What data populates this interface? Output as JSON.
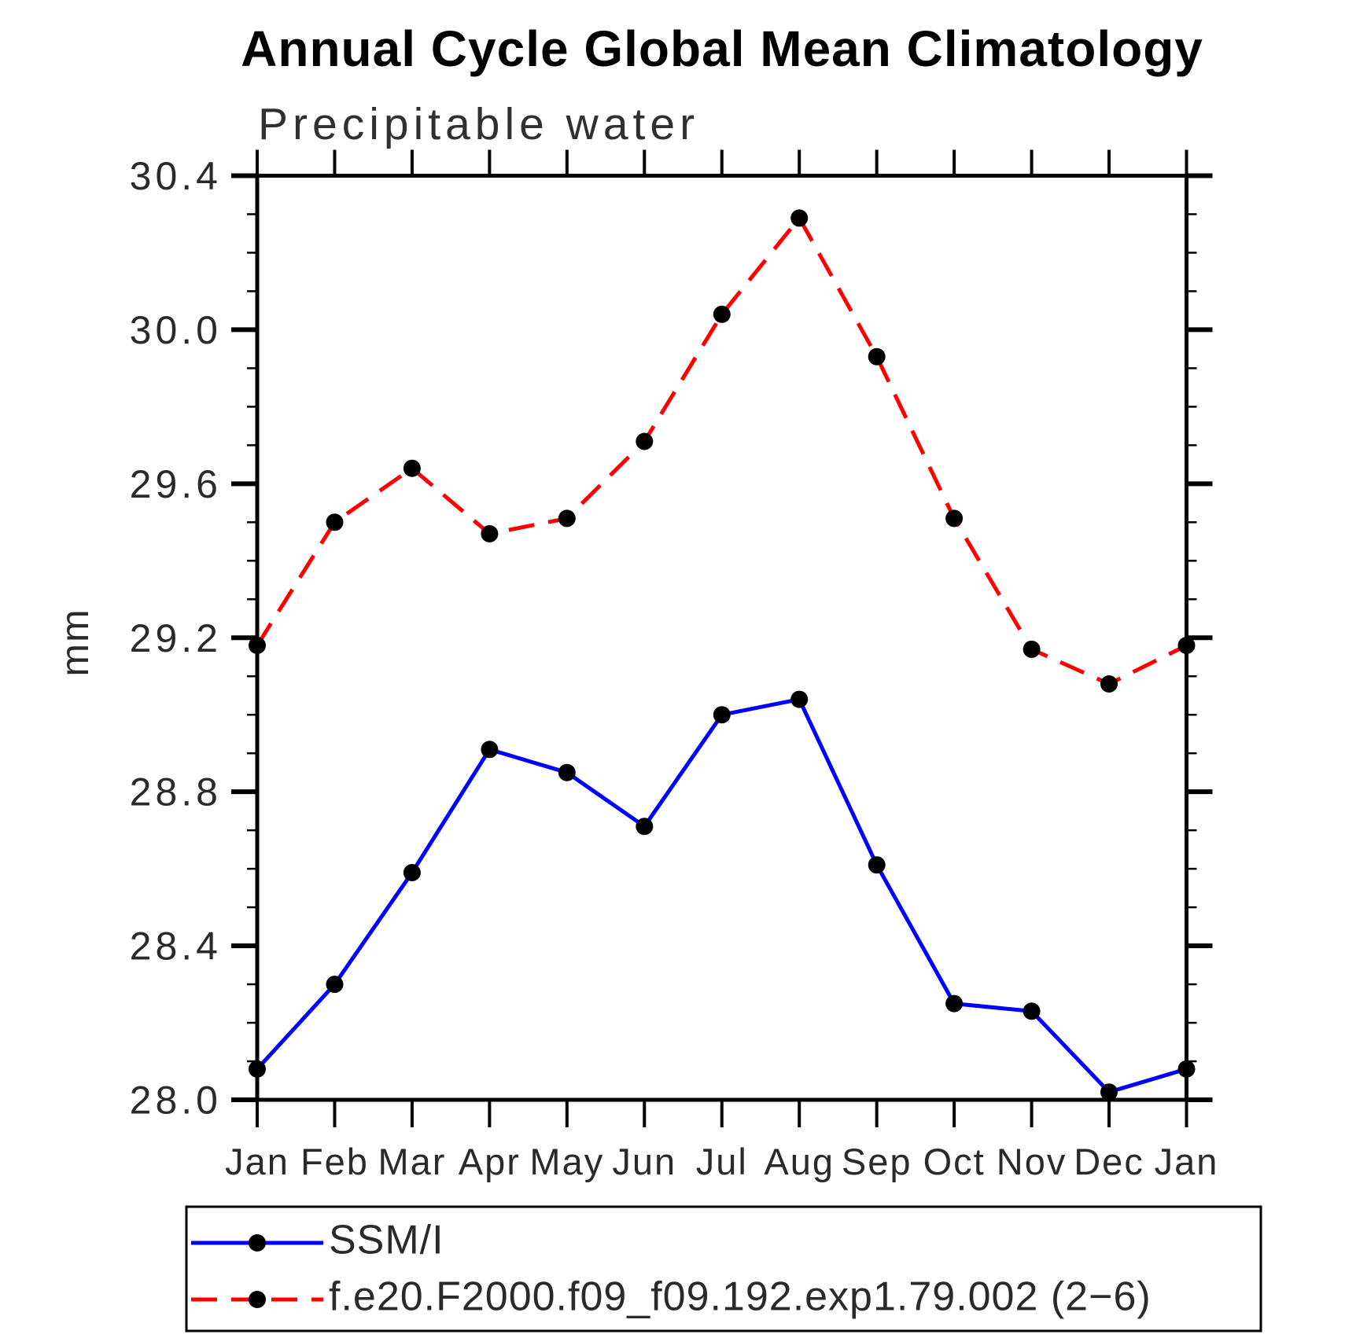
{
  "chart_data": {
    "type": "line",
    "title": "Annual Cycle Global Mean Climatology",
    "subtitle": "Precipitable water",
    "ylabel": "mm",
    "xlabel": "",
    "categories": [
      "Jan",
      "Feb",
      "Mar",
      "Apr",
      "May",
      "Jun",
      "Jul",
      "Aug",
      "Sep",
      "Oct",
      "Nov",
      "Dec",
      "Jan"
    ],
    "ylim": [
      28.0,
      30.4
    ],
    "ytick_labels": [
      "28.0",
      "28.4",
      "28.8",
      "29.2",
      "29.6",
      "30.0",
      "30.4"
    ],
    "ytick_minor_step": 0.1,
    "grid": false,
    "legend_position": "bottom",
    "axis_color": "#000000",
    "marker_color": "#000000",
    "series": [
      {
        "name": "SSM/I",
        "color": "#0000ff",
        "dashed": false,
        "values": [
          28.08,
          28.3,
          28.59,
          28.91,
          28.85,
          28.71,
          29.0,
          29.04,
          28.61,
          28.25,
          28.23,
          28.02,
          28.08
        ]
      },
      {
        "name": "f.e20.F2000.f09_f09.192.exp1.79.002 (2−6)",
        "color": "#ff0000",
        "dashed": true,
        "values": [
          29.18,
          29.5,
          29.64,
          29.47,
          29.51,
          29.71,
          30.04,
          30.29,
          29.93,
          29.51,
          29.17,
          29.08,
          29.18
        ]
      }
    ]
  }
}
